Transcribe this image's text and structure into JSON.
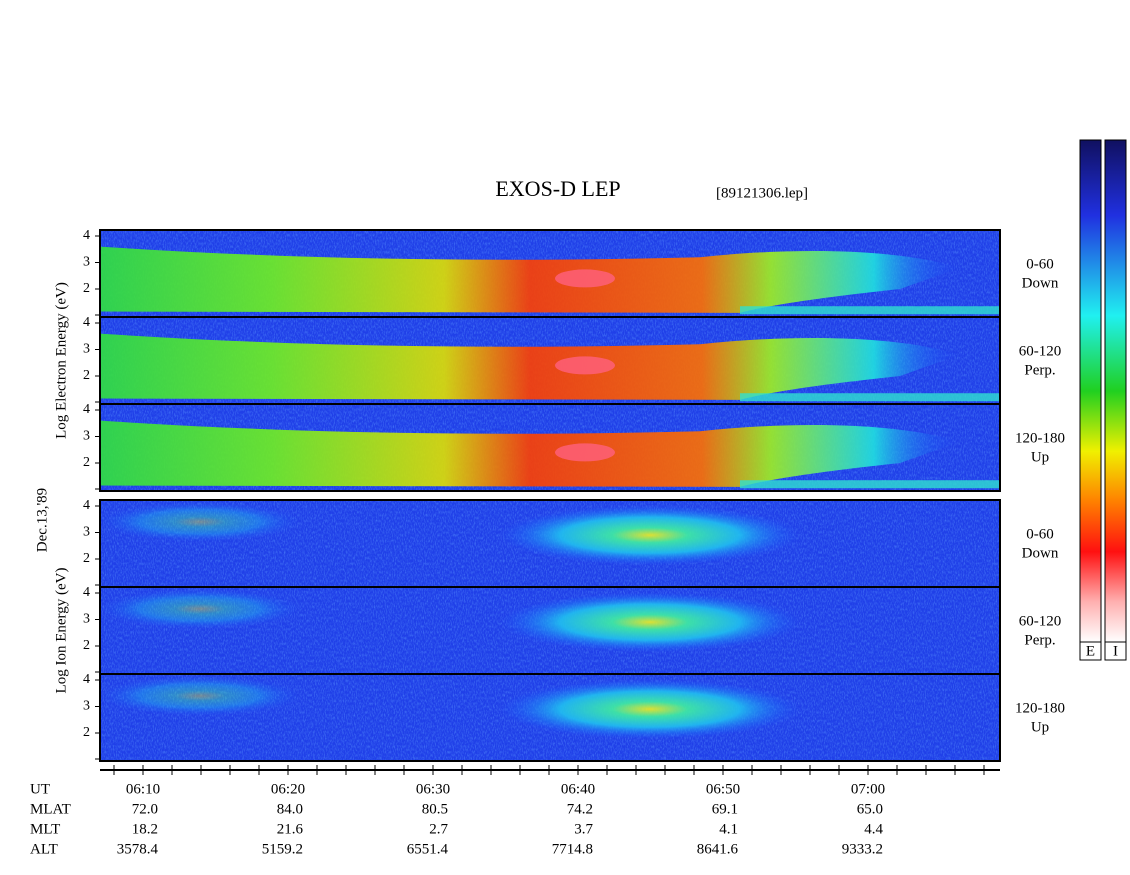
{
  "title": "EXOS-D LEP",
  "file": "[89121306.lep]",
  "date": "Dec.13,'89",
  "electron": {
    "ylabel": "Log Electron Energy (eV)",
    "yticks": [
      2,
      3,
      4
    ],
    "panels": [
      {
        "angle": "0-60",
        "direction": "Down"
      },
      {
        "angle": "60-120",
        "direction": "Perp."
      },
      {
        "angle": "120-180",
        "direction": "Up"
      }
    ]
  },
  "ion": {
    "ylabel": "Log Ion Energy (eV)",
    "yticks": [
      2,
      3,
      4
    ],
    "panels": [
      {
        "angle": "0-60",
        "direction": "Down"
      },
      {
        "angle": "60-120",
        "direction": "Perp."
      },
      {
        "angle": "120-180",
        "direction": "Up"
      }
    ]
  },
  "axis": {
    "rows": [
      {
        "name": "UT",
        "values": [
          "06:10",
          "06:20",
          "06:30",
          "06:40",
          "06:50",
          "07:00"
        ]
      },
      {
        "name": "MLAT",
        "values": [
          "72.0",
          "84.0",
          "80.5",
          "74.2",
          "69.1",
          "65.0"
        ]
      },
      {
        "name": "MLT",
        "values": [
          "18.2",
          "21.6",
          "2.7",
          "3.7",
          "4.1",
          "4.4"
        ]
      },
      {
        "name": "ALT",
        "values": [
          "3578.4",
          "5159.2",
          "6551.4",
          "7714.8",
          "8641.6",
          "9333.2"
        ]
      }
    ]
  },
  "colorbars": [
    "E",
    "I"
  ]
}
